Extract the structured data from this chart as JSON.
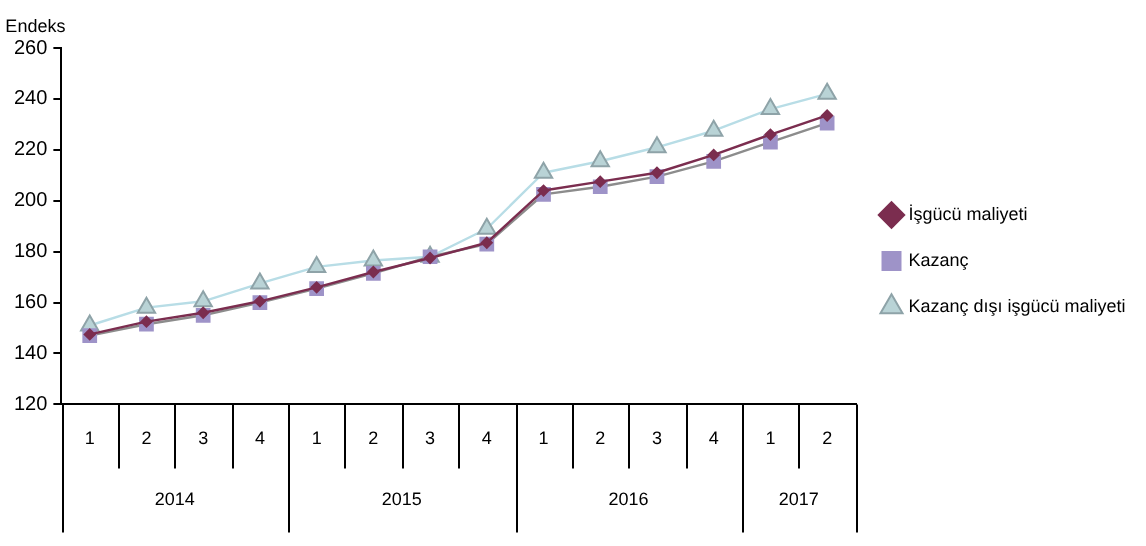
{
  "chart_data": {
    "type": "line",
    "ylabel": "Endeks",
    "categories": [
      "1",
      "2",
      "3",
      "4",
      "1",
      "2",
      "3",
      "4",
      "1",
      "2",
      "3",
      "4",
      "1",
      "2"
    ],
    "annotations": [
      "2014",
      "2015",
      "2016",
      "2017"
    ],
    "series": [
      {
        "name": "İşgücü maliyeti",
        "color": "#7b2d4f",
        "marker": "diamond",
        "values": [
          147.5,
          152.5,
          156,
          160.5,
          166,
          172,
          177.5,
          183.5,
          204,
          207.5,
          211,
          218,
          226,
          233.5
        ]
      },
      {
        "name": "Kazanç",
        "color": "#8c8c8c",
        "marker": "square",
        "values": [
          147,
          151.5,
          155,
          160,
          165.5,
          171.5,
          178,
          183,
          202.5,
          205.5,
          209.5,
          215.5,
          223,
          230.5
        ]
      },
      {
        "name": "Kazanç dışı işgücü maliyeti",
        "color": "#b8dde6",
        "marker": "triangle",
        "values": [
          151,
          158,
          160.5,
          167.5,
          174,
          176.5,
          178,
          189,
          211,
          215.5,
          221,
          227.5,
          236,
          242
        ]
      }
    ],
    "ylim": [
      120,
      260
    ],
    "yticks": [
      120,
      140,
      160,
      180,
      200,
      220,
      240,
      260
    ],
    "grid": false,
    "legend": "right"
  }
}
